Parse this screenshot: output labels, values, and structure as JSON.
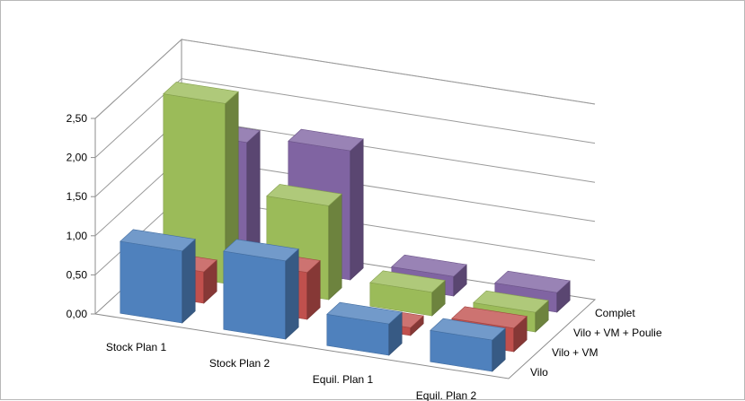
{
  "chart_data": {
    "type": "bar",
    "subtype": "3d-column",
    "categories": [
      "Stock Plan 1",
      "Stock Plan 2",
      "Equil. Plan 1",
      "Equil. Plan 2"
    ],
    "series": [
      {
        "name": "Vilo",
        "values": [
          0.92,
          1.0,
          0.4,
          0.4
        ],
        "color": "#4F81BD"
      },
      {
        "name": "Vilo + VM",
        "values": [
          0.4,
          0.6,
          0.1,
          0.3
        ],
        "color": "#C0504D"
      },
      {
        "name": "Vilo + VM + Poulie",
        "values": [
          2.3,
          1.2,
          0.3,
          0.25
        ],
        "color": "#9BBB59"
      },
      {
        "name": "Complet",
        "values": [
          1.55,
          1.65,
          0.25,
          0.25
        ],
        "color": "#8064A2"
      }
    ],
    "ylim": [
      0,
      2.5
    ],
    "yticks": [
      "0,00",
      "0,50",
      "1,00",
      "1,50",
      "2,00",
      "2,50"
    ],
    "title": "",
    "xlabel": "",
    "ylabel": "",
    "grid": true,
    "legend": "none"
  }
}
